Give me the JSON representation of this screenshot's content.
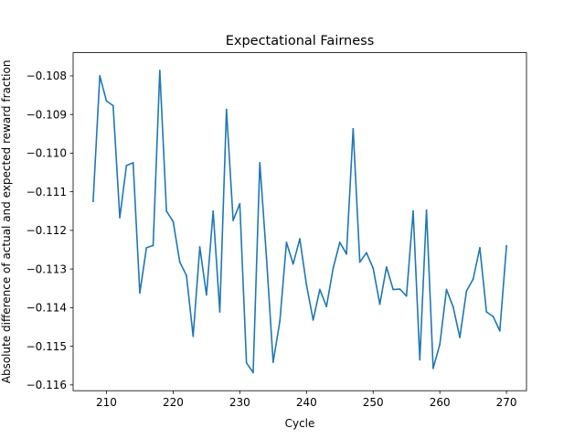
{
  "chart_data": {
    "type": "line",
    "title": "Expectational Fairness",
    "xlabel": "Cycle",
    "ylabel": "Absolute difference of actual and expected reward fraction",
    "xlim": [
      205,
      273
    ],
    "ylim": [
      -0.11615,
      -0.1074
    ],
    "xticks": [
      210,
      220,
      230,
      240,
      250,
      260,
      270
    ],
    "yticks": [
      -0.116,
      -0.115,
      -0.114,
      -0.113,
      -0.112,
      -0.111,
      -0.11,
      -0.109,
      -0.108
    ],
    "ytick_labels": [
      "−0.116",
      "−0.115",
      "−0.114",
      "−0.113",
      "−0.112",
      "−0.111",
      "−0.110",
      "−0.109",
      "−0.108"
    ],
    "grid": false,
    "colors": {
      "line": "#1f77b4",
      "axes": "#000000",
      "background": "#ffffff"
    },
    "series": [
      {
        "x": [
          208,
          209,
          210,
          211,
          212,
          213,
          214,
          215,
          216,
          217,
          218,
          219,
          220,
          221,
          222,
          223,
          224,
          225,
          226,
          227,
          228,
          229,
          230,
          231,
          232,
          233,
          234,
          235,
          236,
          237,
          238,
          239,
          240,
          241,
          242,
          243,
          244,
          245,
          246,
          247,
          248,
          249,
          250,
          251,
          252,
          253,
          254,
          255,
          256,
          257,
          258,
          259,
          260,
          261,
          262,
          263,
          264,
          265,
          266,
          267,
          268,
          269,
          270
        ],
        "y": [
          -0.11125,
          -0.108,
          -0.10865,
          -0.10877,
          -0.11167,
          -0.11032,
          -0.11025,
          -0.11362,
          -0.11245,
          -0.11239,
          -0.10786,
          -0.1115,
          -0.11177,
          -0.11282,
          -0.11317,
          -0.11474,
          -0.11243,
          -0.11367,
          -0.1115,
          -0.11411,
          -0.10887,
          -0.11174,
          -0.11131,
          -0.11543,
          -0.11568,
          -0.11025,
          -0.1127,
          -0.11541,
          -0.11436,
          -0.11231,
          -0.11287,
          -0.11222,
          -0.11341,
          -0.11432,
          -0.11353,
          -0.11397,
          -0.11298,
          -0.11231,
          -0.11261,
          -0.10937,
          -0.11282,
          -0.11258,
          -0.11298,
          -0.11391,
          -0.11295,
          -0.11353,
          -0.11352,
          -0.1137,
          -0.1115,
          -0.11535,
          -0.11148,
          -0.11557,
          -0.11495,
          -0.11353,
          -0.11398,
          -0.11477,
          -0.11357,
          -0.11326,
          -0.11245,
          -0.11411,
          -0.11423,
          -0.1146,
          -0.1124
        ]
      }
    ]
  }
}
